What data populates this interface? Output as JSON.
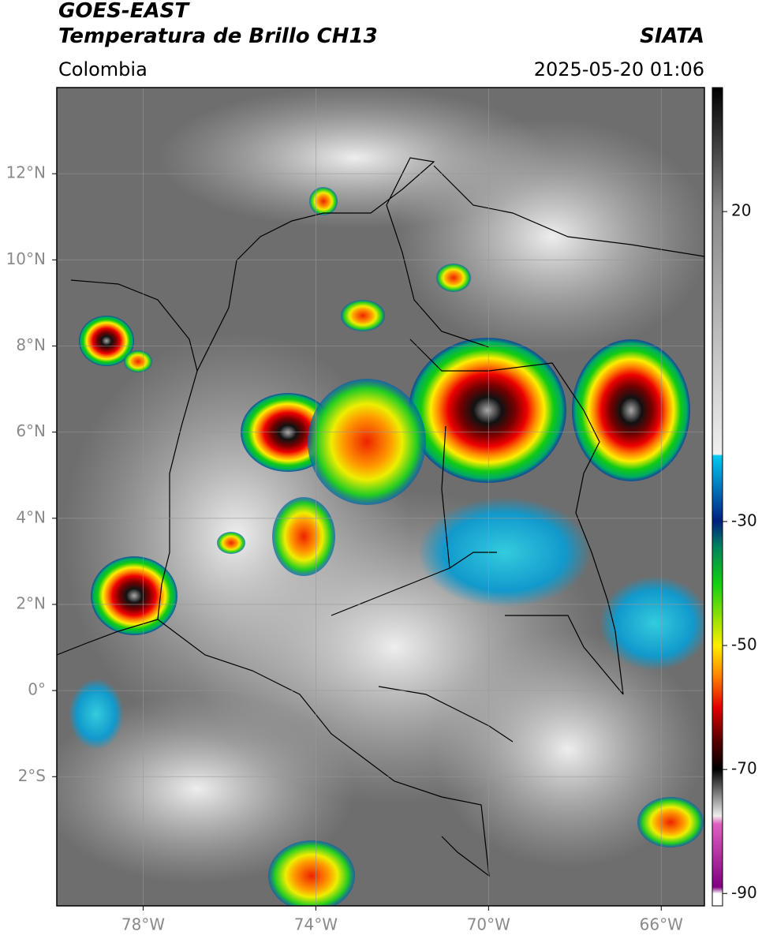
{
  "header": {
    "title": "GOES-EAST",
    "subtitle": "Temperatura de Brillo CH13",
    "source": "SIATA",
    "region": "Colombia",
    "datetime": "2025-05-20 01:06"
  },
  "map": {
    "xlim": [
      -80,
      -65
    ],
    "ylim": [
      -5,
      14
    ],
    "xticks": [
      {
        "value": -78,
        "label": "78°W"
      },
      {
        "value": -74,
        "label": "74°W"
      },
      {
        "value": -70,
        "label": "70°W"
      },
      {
        "value": -66,
        "label": "66°W"
      }
    ],
    "yticks": [
      {
        "value": 12,
        "label": "12°N"
      },
      {
        "value": 10,
        "label": "10°N"
      },
      {
        "value": 8,
        "label": "8°N"
      },
      {
        "value": 6,
        "label": "6°N"
      },
      {
        "value": 4,
        "label": "4°N"
      },
      {
        "value": 2,
        "label": "2°N"
      },
      {
        "value": 0,
        "label": "0°"
      },
      {
        "value": -2,
        "label": "2°S"
      }
    ],
    "grid": true
  },
  "colorbar": {
    "lim": [
      -92,
      40
    ],
    "ticks": [
      20,
      -30,
      -50,
      -70,
      -90
    ]
  }
}
